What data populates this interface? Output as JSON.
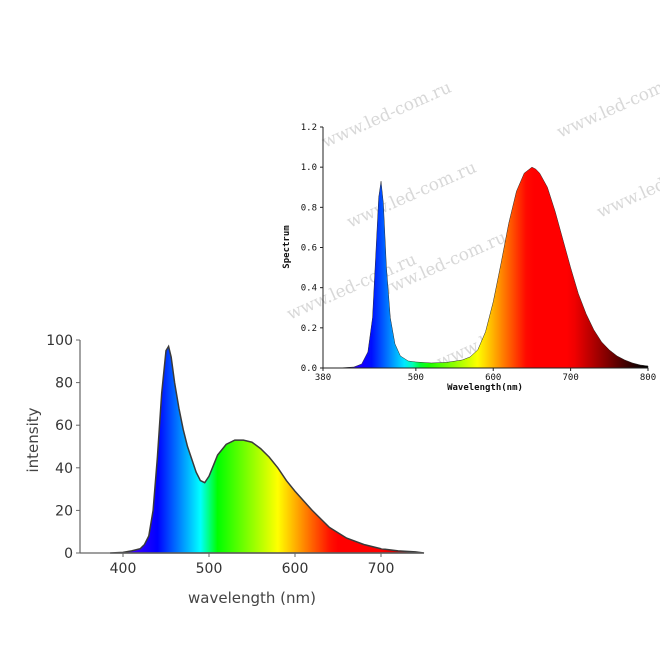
{
  "watermark": "www.led-com.ru",
  "chart_data": [
    {
      "type": "area",
      "xlabel": "Wavelength(nm)",
      "ylabel": "Spectrum",
      "xlim": [
        380,
        800
      ],
      "ylim": [
        0,
        1.2
      ],
      "x_ticks": [
        "380",
        "500",
        "600",
        "700",
        "800"
      ],
      "y_ticks": [
        "0.0",
        "0.2",
        "0.4",
        "0.6",
        "0.8",
        "1.0",
        "1.2"
      ],
      "fill": "visible-spectrum gradient",
      "series": [
        {
          "x": [
            380,
            400,
            420,
            430,
            438,
            444,
            448,
            452,
            455,
            458,
            462,
            467,
            473,
            480,
            490,
            500,
            520,
            540,
            560,
            570,
            580,
            590,
            600,
            610,
            620,
            630,
            640,
            650,
            655,
            660,
            670,
            680,
            690,
            700,
            710,
            720,
            730,
            740,
            750,
            760,
            770,
            780,
            790,
            800
          ],
          "values": [
            0,
            0,
            0.005,
            0.02,
            0.08,
            0.25,
            0.55,
            0.85,
            0.93,
            0.82,
            0.5,
            0.25,
            0.12,
            0.06,
            0.035,
            0.03,
            0.025,
            0.028,
            0.04,
            0.055,
            0.09,
            0.18,
            0.33,
            0.52,
            0.72,
            0.88,
            0.97,
            1.0,
            0.99,
            0.97,
            0.9,
            0.78,
            0.64,
            0.5,
            0.37,
            0.27,
            0.19,
            0.13,
            0.09,
            0.06,
            0.04,
            0.025,
            0.015,
            0.01
          ]
        }
      ]
    },
    {
      "type": "area",
      "xlabel": "wavelength (nm)",
      "ylabel": "intensity",
      "xlim": [
        350,
        750
      ],
      "ylim": [
        0,
        100
      ],
      "x_ticks": [
        "400",
        "500",
        "600",
        "700"
      ],
      "y_ticks": [
        "0",
        "20",
        "40",
        "60",
        "80",
        "100"
      ],
      "fill": "visible-spectrum gradient",
      "series": [
        {
          "x": [
            385,
            400,
            410,
            420,
            425,
            430,
            435,
            440,
            445,
            450,
            453,
            456,
            460,
            465,
            470,
            475,
            480,
            485,
            490,
            495,
            500,
            505,
            510,
            520,
            530,
            540,
            550,
            560,
            570,
            580,
            590,
            600,
            620,
            640,
            660,
            680,
            700,
            720,
            740,
            750
          ],
          "values": [
            0,
            0.3,
            1,
            2,
            4,
            8,
            20,
            45,
            75,
            95,
            97,
            92,
            80,
            68,
            58,
            50,
            44,
            38,
            34,
            33,
            36,
            41,
            46,
            51,
            53,
            53,
            52,
            49,
            45,
            40,
            34,
            29,
            20,
            12,
            7,
            4,
            2,
            1,
            0.5,
            0
          ]
        }
      ]
    }
  ]
}
